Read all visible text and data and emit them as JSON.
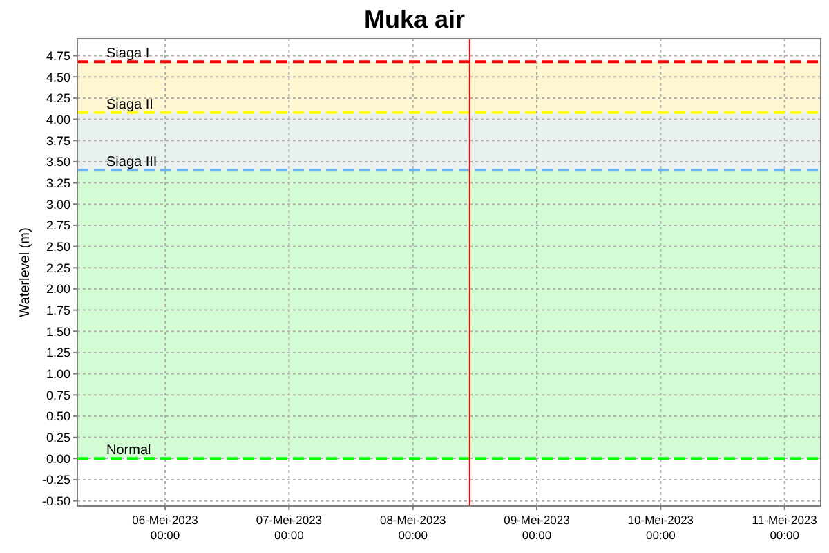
{
  "chart_data": {
    "type": "line",
    "title": "Muka air",
    "ylabel": "Waterlevel (m)",
    "xlim": [
      "2023-05-05T07:00",
      "2023-05-11T07:00"
    ],
    "xticks": [
      {
        "value": "2023-05-06",
        "label": "06-Mei-2023\n00:00"
      },
      {
        "value": "2023-05-07",
        "label": "07-Mei-2023\n00:00"
      },
      {
        "value": "2023-05-08",
        "label": "08-Mei-2023\n00:00"
      },
      {
        "value": "2023-05-09",
        "label": "09-Mei-2023\n00:00"
      },
      {
        "value": "2023-05-10",
        "label": "10-Mei-2023\n00:00"
      },
      {
        "value": "2023-05-11",
        "label": "11-Mei-2023\n00:00"
      }
    ],
    "ylim": [
      -0.56,
      4.95
    ],
    "yticks": [
      {
        "value": -0.5,
        "label": "-0.50"
      },
      {
        "value": -0.25,
        "label": "-0.25"
      },
      {
        "value": 0,
        "label": "0.00"
      },
      {
        "value": 0.25,
        "label": "0.25"
      },
      {
        "value": 0.5,
        "label": "0.50"
      },
      {
        "value": 0.75,
        "label": "0.75"
      },
      {
        "value": 1,
        "label": "1.00"
      },
      {
        "value": 1.25,
        "label": "1.25"
      },
      {
        "value": 1.5,
        "label": "1.50"
      },
      {
        "value": 1.75,
        "label": "1.75"
      },
      {
        "value": 2,
        "label": "2.00"
      },
      {
        "value": 2.25,
        "label": "2.25"
      },
      {
        "value": 2.5,
        "label": "2.50"
      },
      {
        "value": 2.75,
        "label": "2.75"
      },
      {
        "value": 3,
        "label": "3.00"
      },
      {
        "value": 3.25,
        "label": "3.25"
      },
      {
        "value": 3.5,
        "label": "3.50"
      },
      {
        "value": 3.75,
        "label": "3.75"
      },
      {
        "value": 4,
        "label": "4.00"
      },
      {
        "value": 4.25,
        "label": "4.25"
      },
      {
        "value": 4.5,
        "label": "4.50"
      },
      {
        "value": 4.75,
        "label": "4.75"
      }
    ],
    "grid": true,
    "bands": [
      {
        "axis": "y",
        "from": 0,
        "to": 3.4,
        "color": "#d4fcd4"
      },
      {
        "axis": "y",
        "from": 3.4,
        "to": 4.08,
        "color": "#e8f0f0"
      },
      {
        "axis": "y",
        "from": 4.08,
        "to": 4.68,
        "color": "#fdf6d0"
      }
    ],
    "ref_lines": [
      {
        "axis": "y",
        "value": 4.68,
        "label": "Siaga I",
        "color": "#ff0000",
        "line_style": "dashed"
      },
      {
        "axis": "y",
        "value": 4.08,
        "label": "Siaga II",
        "color": "#ffff00",
        "line_style": "dashed"
      },
      {
        "axis": "y",
        "value": 3.4,
        "label": "Siaga III",
        "color": "#6cb4f0",
        "line_style": "dashed"
      },
      {
        "axis": "y",
        "value": 0,
        "label": "Normal",
        "color": "#00ff00",
        "line_style": "dashed"
      },
      {
        "axis": "x",
        "value": "2023-05-08T11:00",
        "color": "#ff0000",
        "line_style": "solid"
      }
    ]
  }
}
